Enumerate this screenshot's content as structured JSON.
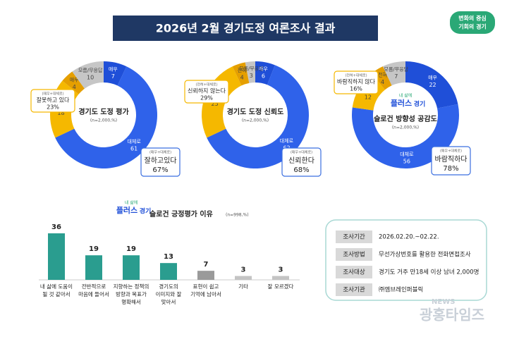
{
  "header": {
    "title": "2026년 2월 경기도정 여론조사 결과",
    "logo": [
      "변화의 중심",
      "기회의 경기"
    ]
  },
  "chart_data": [
    {
      "type": "pie",
      "title": "경기도 도정 평가",
      "subtitle": "(n=2,000,%)",
      "categories": [
        "매우",
        "대체로",
        "대체로",
        "매우",
        "모름/무응답"
      ],
      "values": [
        7,
        61,
        18,
        4,
        10
      ],
      "colors": [
        "#1f4fd8",
        "#2f62ea",
        "#f5b800",
        "#e59f00",
        "#c6c6c6"
      ],
      "callouts": [
        {
          "note": "(매우+대체로)",
          "label": "잘하고있다",
          "value": 67,
          "value_label": "67%"
        },
        {
          "note": "(매우+대체로)",
          "label": "잘못하고 있다",
          "value": 23,
          "value_label": "23%"
        }
      ]
    },
    {
      "type": "pie",
      "title": "경기도 도정 신뢰도",
      "subtitle": "(n=2,000,%)",
      "categories": [
        "매우",
        "대체로",
        "대체로",
        "전혀",
        "모름/무응답"
      ],
      "values": [
        6,
        62,
        25,
        4,
        3
      ],
      "colors": [
        "#1f4fd8",
        "#2f62ea",
        "#f5b800",
        "#e59f00",
        "#c6c6c6"
      ],
      "callouts": [
        {
          "note": "(매우+대체로)",
          "label": "신뢰한다",
          "value": 68,
          "value_label": "68%"
        },
        {
          "note": "(전혀+대체로)",
          "label": "신뢰하지 않는다",
          "value": 29,
          "value_label": "29%"
        }
      ]
    },
    {
      "type": "pie",
      "title": "슬로건 방향성 공감도",
      "subtitle": "(n=2,000,%)",
      "logo": [
        "내 삶에",
        "플러스",
        "경기"
      ],
      "categories": [
        "매우",
        "대체로",
        "대체로",
        "전혀",
        "모름/무응답"
      ],
      "values": [
        22,
        56,
        12,
        4,
        7
      ],
      "colors": [
        "#1f4fd8",
        "#2f62ea",
        "#f5b800",
        "#e59f00",
        "#c6c6c6"
      ],
      "callouts": [
        {
          "note": "(매우+대체로)",
          "label": "바람직하다",
          "value": 78,
          "value_label": "78%"
        },
        {
          "note": "(전혀+대체로)",
          "label": "바람직하지 않다",
          "value": 16,
          "value_label": "16%"
        }
      ]
    },
    {
      "type": "bar",
      "logo": [
        "내 삶에",
        "플러스",
        "경기"
      ],
      "title": "슬로건 긍정평가 이유",
      "subtitle": "(n=998,%)",
      "categories": [
        [
          "내 삶에 도움이",
          "될 것 같아서"
        ],
        [
          "전반적으로",
          "마음에 들어서"
        ],
        [
          "지향하는 정책의",
          "방향과 목표가",
          "명확해서"
        ],
        [
          "경기도의",
          "이미지와 잘",
          "맞아서"
        ],
        [
          "표현이 쉽고",
          "기억에 남아서"
        ],
        [
          "기타"
        ],
        [
          "잘 모르겠다"
        ]
      ],
      "values": [
        36,
        19,
        19,
        13,
        7,
        3,
        3
      ],
      "colors": [
        "#2a9d8f",
        "#2a9d8f",
        "#2a9d8f",
        "#2a9d8f",
        "#9a9a9a",
        "#c4c4c4",
        "#c4c4c4"
      ]
    }
  ],
  "survey_info": {
    "rows": [
      [
        "조사기간",
        "2026.02.20.~02.22."
      ],
      [
        "조사방법",
        "무선가상번호를 활용한 전화면접조사"
      ],
      [
        "조사대상",
        "경기도 거주 만18세 이상 남녀 2,000명"
      ],
      [
        "조사기관",
        "㈜엠브레인퍼블릭"
      ]
    ]
  },
  "watermark": [
    "NEWS",
    "광홍타임즈"
  ]
}
